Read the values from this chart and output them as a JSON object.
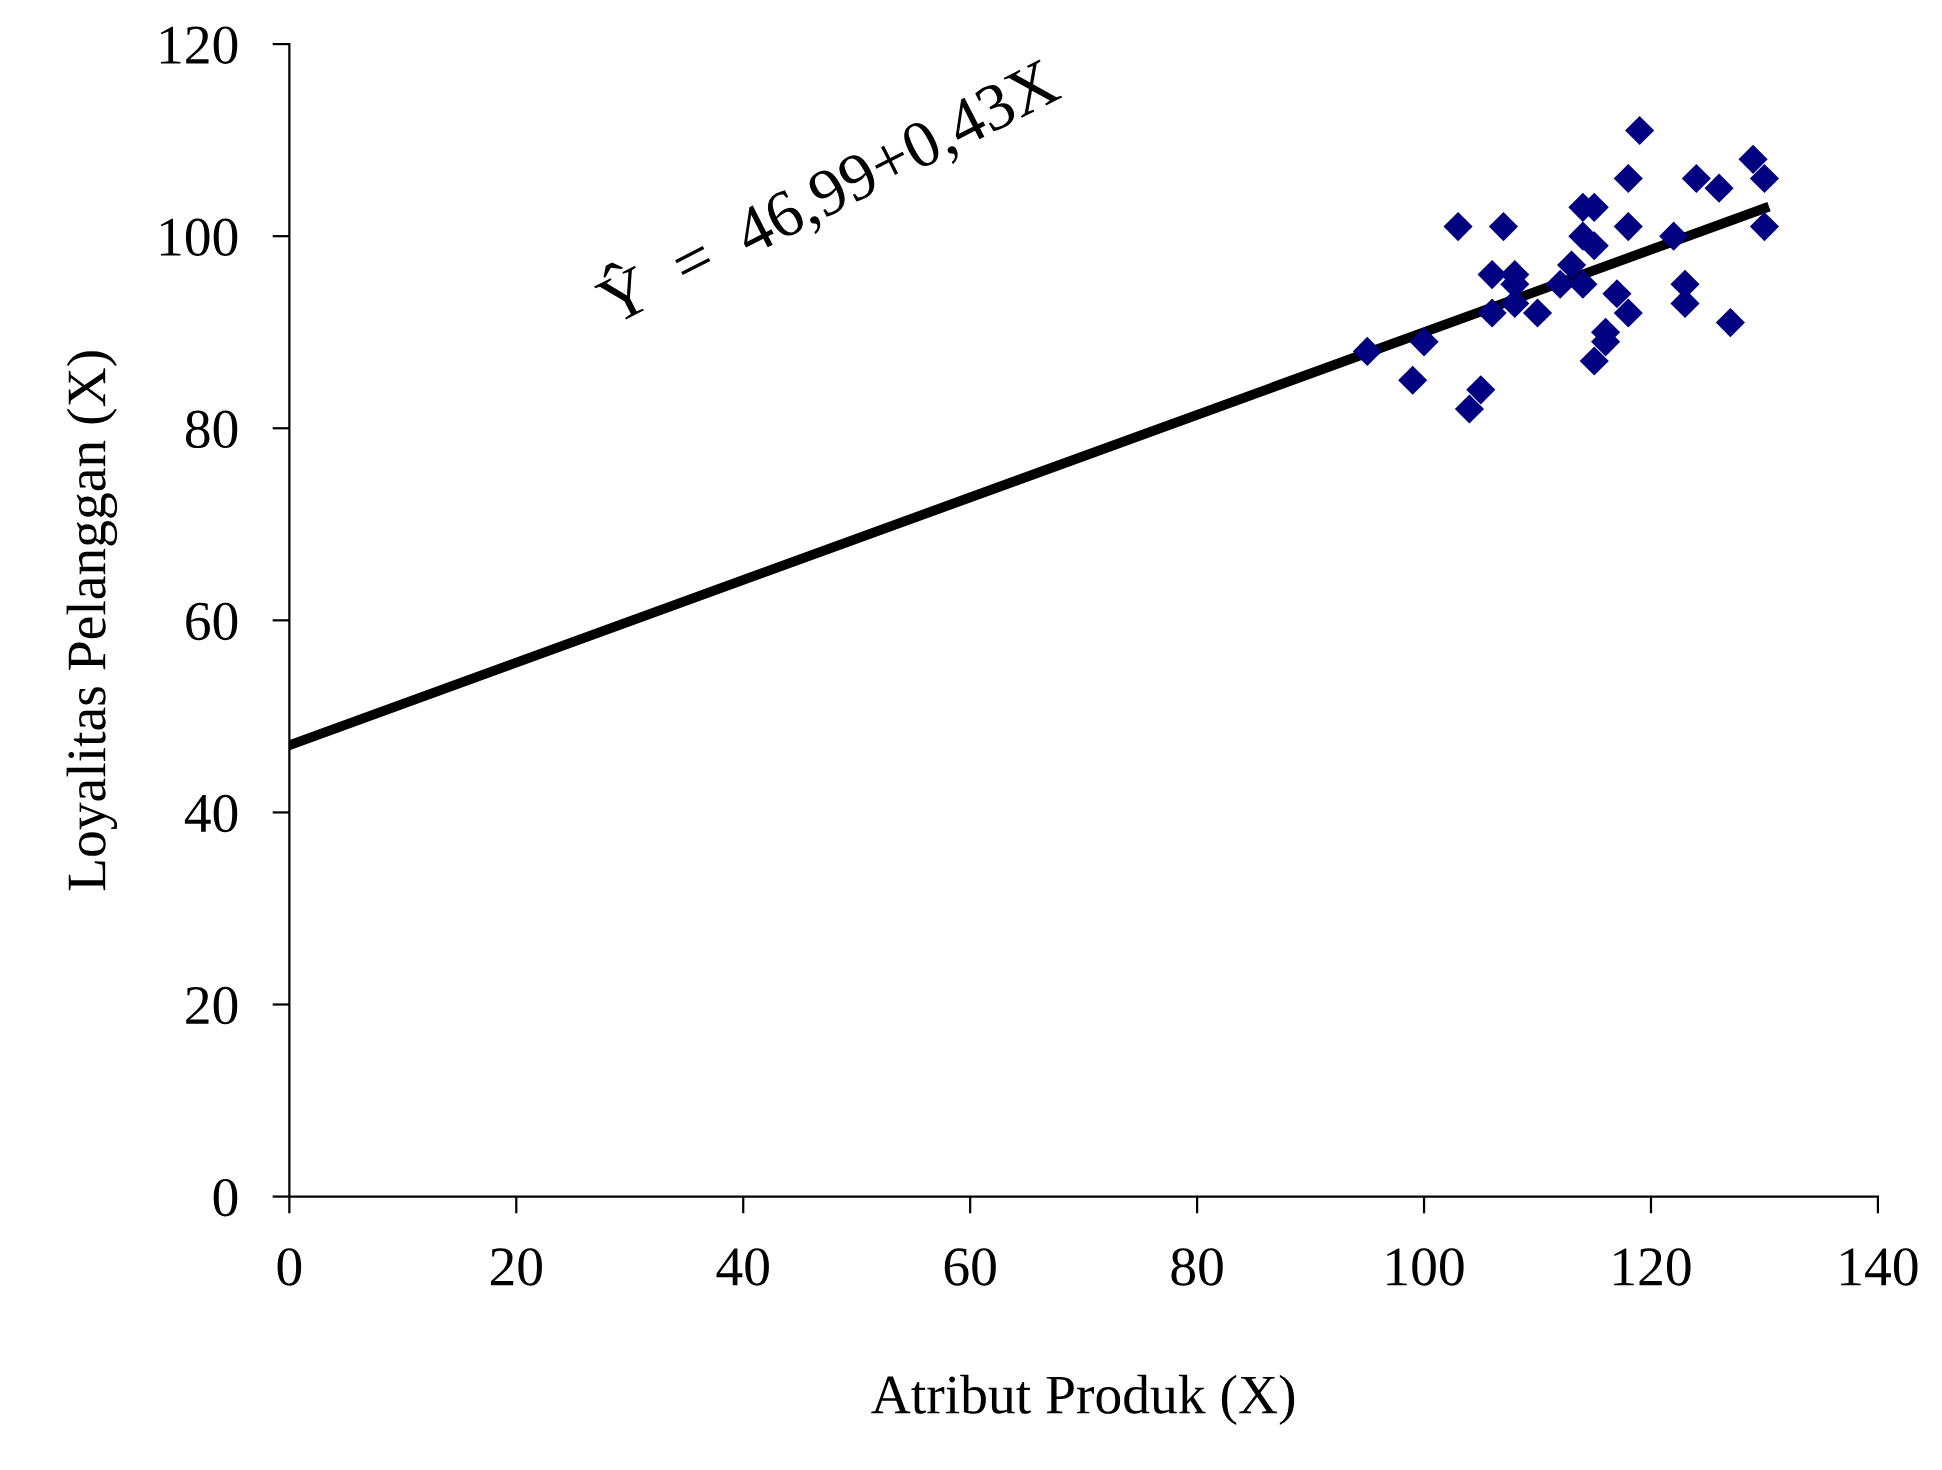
{
  "chart_data": {
    "type": "scatter",
    "xlabel": "Atribut Produk (X)",
    "ylabel": "Loyalitas Pelanggan (X)",
    "annotations": [
      "Ŷ  =  46,99+0,43X"
    ],
    "series": [
      {
        "color": "#000080",
        "marker": "diamond",
        "x": [
          119,
          118,
          124,
          126,
          129,
          130,
          130,
          114,
          115,
          103,
          107,
          118,
          114,
          115,
          122,
          113,
          106,
          108,
          108,
          112,
          114,
          123,
          123,
          106,
          108,
          110,
          117,
          118,
          127,
          116,
          116,
          115,
          95,
          100,
          99,
          105,
          104
        ],
        "values": [
          111,
          106,
          106,
          105,
          108,
          106,
          101,
          103,
          103,
          101,
          101,
          101,
          100,
          99,
          100,
          97,
          96,
          96,
          95,
          95,
          95,
          95,
          93,
          92,
          93,
          92,
          94,
          92,
          91,
          90,
          89,
          87,
          88,
          89,
          85,
          84,
          82
        ]
      },
      {
        "type": "line",
        "color": "#000000",
        "x": [
          0,
          130
        ],
        "values": [
          47,
          102.9
        ]
      }
    ],
    "xlim": [
      0,
      140
    ],
    "xticks": [
      0,
      20,
      40,
      60,
      80,
      100,
      120,
      140
    ],
    "ylim": [
      0,
      120
    ],
    "yticks": [
      0,
      20,
      40,
      60,
      80,
      100,
      120
    ],
    "grid": false,
    "legend": false
  }
}
